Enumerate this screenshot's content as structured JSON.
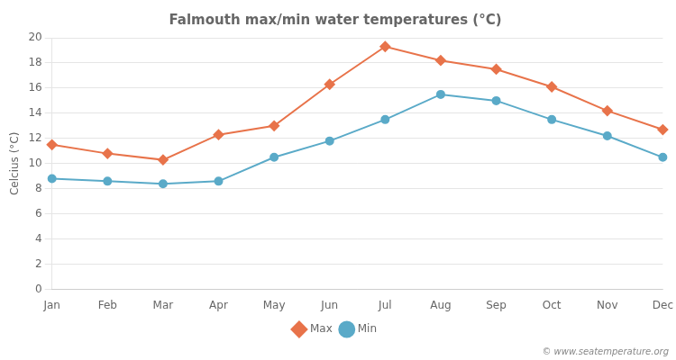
{
  "chart_data": {
    "type": "line",
    "title": "Falmouth max/min water temperatures (°C)",
    "ylabel": "Celcius (°C)",
    "categories": [
      "Jan",
      "Feb",
      "Mar",
      "Apr",
      "May",
      "Jun",
      "Jul",
      "Aug",
      "Sep",
      "Oct",
      "Nov",
      "Dec"
    ],
    "series": [
      {
        "name": "Max",
        "color": "#e8734a",
        "marker": "diamond",
        "values": [
          11.5,
          10.8,
          10.3,
          12.3,
          13.0,
          16.3,
          19.3,
          18.2,
          17.5,
          16.1,
          14.2,
          12.7
        ]
      },
      {
        "name": "Min",
        "color": "#5aaac8",
        "marker": "circle",
        "values": [
          8.8,
          8.6,
          8.4,
          8.6,
          10.5,
          11.8,
          13.5,
          15.5,
          15.0,
          13.5,
          12.2,
          10.5
        ]
      }
    ],
    "ylim": [
      0,
      20
    ],
    "yticks": [
      0,
      2,
      4,
      6,
      8,
      10,
      12,
      14,
      16,
      18,
      20
    ],
    "grid": true,
    "legend": "bottom",
    "annotations": [
      "© www.seatemperature.org"
    ]
  }
}
